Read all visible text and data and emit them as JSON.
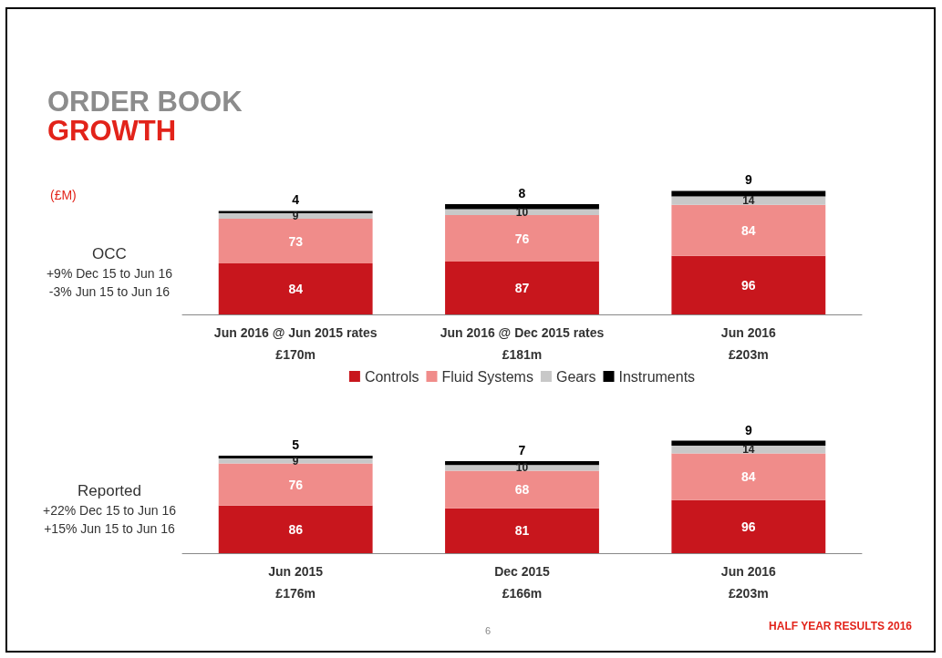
{
  "chart_data": [
    {
      "type": "bar",
      "title": "ORDER BOOK",
      "subtitle": "GROWTH",
      "ylabel": "(£M)",
      "stacked": true,
      "data_labels": true,
      "categories": [
        "Jun 2016 @ Jun 2015 rates\n£170m",
        "Jun 2016 @ Dec 2015 rates\n£181m",
        "Jun 2016\n£203m"
      ],
      "series": [
        {
          "color": "#c8161d",
          "values": [
            84,
            87,
            96
          ]
        },
        {
          "color": "#f08c8a",
          "values": [
            73,
            76,
            84
          ]
        },
        {
          "color": "#c8c8c8",
          "values": [
            9,
            10,
            14
          ]
        },
        {
          "color": "#000000",
          "values": [
            4,
            8,
            9
          ]
        }
      ],
      "annotations": [
        "OCC",
        "+9% Dec 15 to Jun 16",
        "-3% Jun 15 to Jun 16"
      ]
    },
    {
      "type": "bar",
      "stacked": true,
      "data_labels": true,
      "legend": "top",
      "categories": [
        "Jun 2015\n£176m",
        "Dec 2015\n£166m",
        "Jun 2016\n£203m"
      ],
      "series": [
        {
          "name": "Controls",
          "color": "#c8161d",
          "values": [
            86,
            81,
            96
          ]
        },
        {
          "name": "Fluid Systems",
          "color": "#f08c8a",
          "values": [
            76,
            68,
            84
          ]
        },
        {
          "name": "Gears",
          "color": "#c8c8c8",
          "values": [
            9,
            10,
            14
          ]
        },
        {
          "name": "Instruments",
          "color": "#000000",
          "values": [
            5,
            7,
            9
          ]
        }
      ],
      "annotations": [
        "Reported",
        "+22% Dec 15 to Jun 16",
        "+15% Jun 15 to Jun 16",
        "6",
        "HALF YEAR RESULTS 2016"
      ]
    }
  ]
}
